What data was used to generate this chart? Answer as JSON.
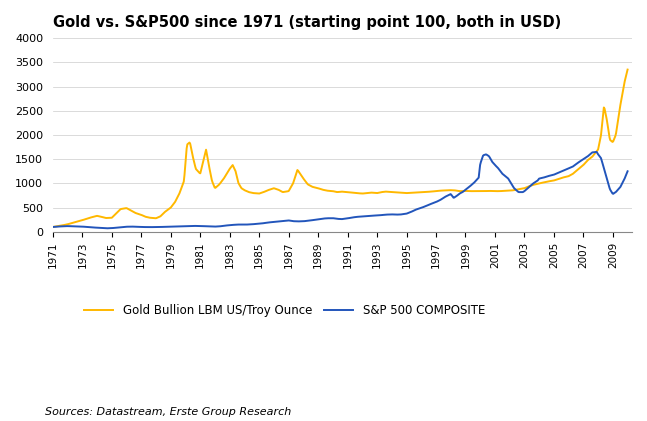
{
  "title": "Gold vs. S&P500 since 1971 (starting point 100, both in USD)",
  "source_text": "Sources: Datastream, Erste Group Research",
  "gold_color": "#FFB800",
  "sp500_color": "#2255BB",
  "gold_label": "Gold Bullion LBM US/Troy Ounce",
  "sp500_label": "S&P 500 COMPOSITE",
  "ylim": [
    0,
    4000
  ],
  "yticks": [
    0,
    500,
    1000,
    1500,
    2000,
    2500,
    3000,
    3500,
    4000
  ],
  "xtick_years": [
    1971,
    1973,
    1975,
    1977,
    1979,
    1981,
    1983,
    1985,
    1987,
    1989,
    1991,
    1993,
    1995,
    1997,
    1999,
    2001,
    2003,
    2005,
    2007,
    2009
  ],
  "gold_x": [
    1971.0,
    1971.3,
    1971.6,
    1972.0,
    1972.5,
    1973.0,
    1973.5,
    1974.0,
    1974.3,
    1974.6,
    1975.0,
    1975.3,
    1975.6,
    1976.0,
    1976.3,
    1976.6,
    1977.0,
    1977.3,
    1977.6,
    1978.0,
    1978.3,
    1978.6,
    1979.0,
    1979.3,
    1979.6,
    1979.9,
    1980.1,
    1980.3,
    1980.5,
    1980.7,
    1981.0,
    1981.2,
    1981.4,
    1981.6,
    1981.8,
    1982.0,
    1982.3,
    1982.6,
    1983.0,
    1983.2,
    1983.4,
    1983.6,
    1983.8,
    1984.0,
    1984.3,
    1984.6,
    1985.0,
    1985.3,
    1985.6,
    1986.0,
    1986.3,
    1986.6,
    1987.0,
    1987.3,
    1987.6,
    1988.0,
    1988.3,
    1988.6,
    1989.0,
    1989.3,
    1989.6,
    1990.0,
    1990.3,
    1990.6,
    1991.0,
    1991.3,
    1991.6,
    1992.0,
    1992.3,
    1992.6,
    1993.0,
    1993.3,
    1993.6,
    1994.0,
    1994.3,
    1994.6,
    1995.0,
    1995.3,
    1995.6,
    1996.0,
    1996.3,
    1996.6,
    1997.0,
    1997.3,
    1997.6,
    1998.0,
    1998.3,
    1998.6,
    1999.0,
    1999.3,
    1999.6,
    2000.0,
    2000.3,
    2000.6,
    2001.0,
    2001.3,
    2001.6,
    2002.0,
    2002.3,
    2002.6,
    2003.0,
    2003.3,
    2003.6,
    2004.0,
    2004.3,
    2004.6,
    2005.0,
    2005.3,
    2005.6,
    2006.0,
    2006.3,
    2006.6,
    2007.0,
    2007.3,
    2007.6,
    2008.0,
    2008.2,
    2008.4,
    2008.6,
    2008.8,
    2009.0,
    2009.2,
    2009.5,
    2009.8,
    2010.0
  ],
  "gold_y": [
    100,
    115,
    130,
    155,
    200,
    240,
    290,
    330,
    310,
    285,
    290,
    380,
    470,
    490,
    440,
    390,
    350,
    310,
    290,
    280,
    320,
    410,
    500,
    620,
    800,
    1050,
    1800,
    1850,
    1550,
    1300,
    1200,
    1450,
    1700,
    1350,
    1050,
    900,
    980,
    1100,
    1300,
    1380,
    1250,
    1000,
    900,
    860,
    820,
    800,
    790,
    820,
    860,
    900,
    870,
    820,
    840,
    1000,
    1280,
    1100,
    980,
    930,
    900,
    870,
    850,
    840,
    820,
    830,
    820,
    810,
    800,
    790,
    800,
    810,
    800,
    820,
    830,
    820,
    815,
    810,
    800,
    805,
    810,
    815,
    820,
    830,
    840,
    850,
    855,
    860,
    855,
    840,
    845,
    840,
    840,
    840,
    840,
    845,
    840,
    840,
    845,
    850,
    860,
    880,
    900,
    940,
    970,
    1000,
    1020,
    1040,
    1060,
    1090,
    1120,
    1150,
    1200,
    1280,
    1380,
    1480,
    1550,
    1700,
    2000,
    2600,
    2300,
    1900,
    1850,
    2000,
    2600,
    3100,
    3350
  ],
  "sp500_x": [
    1971.0,
    1971.3,
    1971.6,
    1972.0,
    1972.5,
    1973.0,
    1973.5,
    1974.0,
    1974.3,
    1974.6,
    1975.0,
    1975.3,
    1975.6,
    1976.0,
    1976.3,
    1976.6,
    1977.0,
    1977.3,
    1977.6,
    1978.0,
    1978.3,
    1978.6,
    1979.0,
    1979.3,
    1979.6,
    1980.0,
    1980.3,
    1980.6,
    1981.0,
    1981.3,
    1981.6,
    1982.0,
    1982.3,
    1982.6,
    1983.0,
    1983.3,
    1983.6,
    1984.0,
    1984.3,
    1984.6,
    1985.0,
    1985.3,
    1985.6,
    1986.0,
    1986.3,
    1986.6,
    1987.0,
    1987.3,
    1987.6,
    1988.0,
    1988.3,
    1988.6,
    1989.0,
    1989.3,
    1989.6,
    1990.0,
    1990.3,
    1990.6,
    1991.0,
    1991.3,
    1991.6,
    1992.0,
    1992.3,
    1992.6,
    1993.0,
    1993.3,
    1993.6,
    1994.0,
    1994.3,
    1994.6,
    1995.0,
    1995.3,
    1995.6,
    1996.0,
    1996.3,
    1996.6,
    1997.0,
    1997.3,
    1997.6,
    1998.0,
    1998.2,
    1998.4,
    1998.6,
    1998.8,
    1999.0,
    1999.3,
    1999.6,
    1999.9,
    2000.0,
    2000.2,
    2000.4,
    2000.6,
    2000.8,
    2001.0,
    2001.2,
    2001.5,
    2001.7,
    2001.9,
    2002.0,
    2002.3,
    2002.6,
    2002.9,
    2003.0,
    2003.3,
    2003.6,
    2003.9,
    2004.0,
    2004.3,
    2004.6,
    2005.0,
    2005.3,
    2005.6,
    2006.0,
    2006.3,
    2006.6,
    2007.0,
    2007.3,
    2007.6,
    2007.9,
    2008.0,
    2008.2,
    2008.5,
    2008.8,
    2009.0,
    2009.2,
    2009.5,
    2009.8,
    2010.0
  ],
  "sp500_y": [
    100,
    108,
    113,
    118,
    113,
    108,
    95,
    85,
    78,
    72,
    76,
    85,
    95,
    105,
    108,
    106,
    100,
    98,
    97,
    98,
    100,
    103,
    106,
    108,
    112,
    118,
    120,
    122,
    120,
    116,
    112,
    108,
    112,
    125,
    138,
    145,
    150,
    148,
    152,
    158,
    168,
    178,
    192,
    205,
    215,
    222,
    235,
    220,
    215,
    218,
    228,
    240,
    258,
    272,
    280,
    282,
    268,
    262,
    278,
    295,
    308,
    318,
    325,
    330,
    340,
    345,
    355,
    360,
    355,
    358,
    375,
    410,
    455,
    495,
    530,
    570,
    615,
    660,
    720,
    780,
    700,
    740,
    790,
    820,
    870,
    940,
    1020,
    1120,
    1400,
    1580,
    1600,
    1560,
    1450,
    1380,
    1320,
    1200,
    1150,
    1100,
    1050,
    900,
    820,
    820,
    840,
    920,
    1000,
    1060,
    1100,
    1120,
    1150,
    1180,
    1220,
    1260,
    1310,
    1350,
    1420,
    1500,
    1560,
    1640,
    1650,
    1600,
    1520,
    1200,
    880,
    780,
    820,
    920,
    1100,
    1250
  ]
}
